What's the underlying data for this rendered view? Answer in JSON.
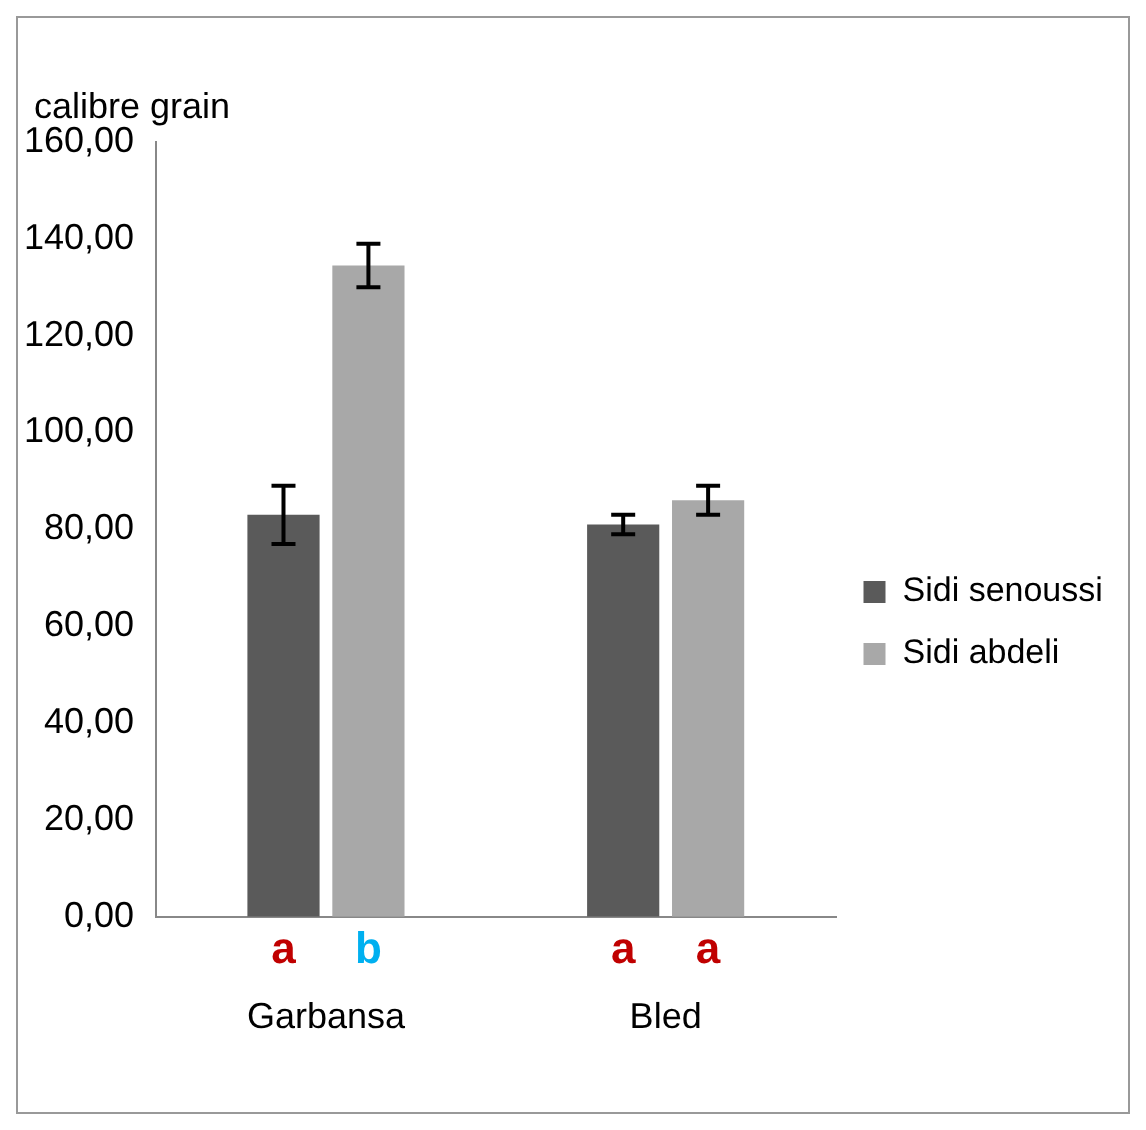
{
  "chart_data": {
    "type": "bar",
    "ylabel": "calibre grain",
    "categories": [
      "Garbansa",
      "Bled"
    ],
    "series": [
      {
        "name": "Sidi senoussi",
        "color": "#5a5a5a",
        "values": [
          83,
          81
        ],
        "errors": [
          6,
          2
        ]
      },
      {
        "name": "Sidi abdeli",
        "color": "#a8a8a8",
        "values": [
          134.5,
          86
        ],
        "errors": [
          4.5,
          3
        ]
      }
    ],
    "ylim": [
      0,
      160
    ],
    "yticks": [
      {
        "value": 0,
        "label": "0,00"
      },
      {
        "value": 20,
        "label": "20,00"
      },
      {
        "value": 40,
        "label": "40,00"
      },
      {
        "value": 60,
        "label": "60,00"
      },
      {
        "value": 80,
        "label": "80,00"
      },
      {
        "value": 100,
        "label": "100,00"
      },
      {
        "value": 120,
        "label": "120,00"
      },
      {
        "value": 140,
        "label": "140,00"
      },
      {
        "value": 160,
        "label": "160,00"
      }
    ],
    "grid": false,
    "legend": "right",
    "annotations": [
      "a",
      "b",
      "a",
      "a"
    ]
  }
}
